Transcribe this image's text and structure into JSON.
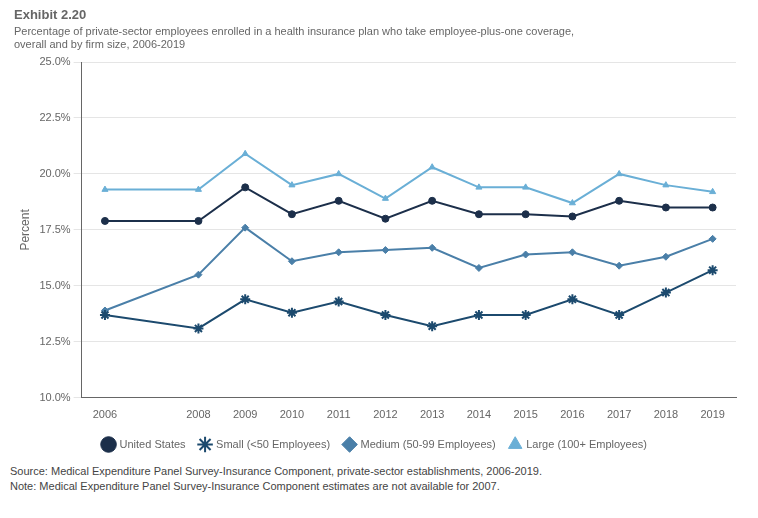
{
  "chart_data": {
    "type": "line",
    "title": "Exhibit 2.20",
    "subtitle": "Percentage of private-sector employees enrolled in a health insurance plan who take employee-plus-one coverage,\noverall and by firm size, 2006-2019",
    "y_label": "Percent",
    "x": [
      2006,
      2008,
      2009,
      2010,
      2011,
      2012,
      2013,
      2014,
      2015,
      2016,
      2017,
      2018,
      2019
    ],
    "series": [
      {
        "name": "United States",
        "color": "#1c2f4a",
        "marker": "circle",
        "values": [
          17.9,
          17.9,
          19.4,
          18.2,
          18.8,
          18.0,
          18.8,
          18.2,
          18.2,
          18.1,
          18.8,
          18.5,
          18.5
        ]
      },
      {
        "name": "Small (<50 Employees)",
        "color": "#1c4a6e",
        "marker": "star",
        "values": [
          13.7,
          13.1,
          14.4,
          13.8,
          14.3,
          13.7,
          13.2,
          13.7,
          13.7,
          14.4,
          13.7,
          14.7,
          15.7
        ]
      },
      {
        "name": "Medium (50-99 Employees)",
        "color": "#4a7fa8",
        "marker": "diamond",
        "values": [
          13.9,
          15.5,
          17.6,
          16.1,
          16.5,
          16.6,
          16.7,
          15.8,
          16.4,
          16.5,
          15.9,
          16.3,
          17.1
        ]
      },
      {
        "name": "Large (100+ Employees)",
        "color": "#6aafd6",
        "marker": "triangle",
        "values": [
          19.3,
          19.3,
          20.9,
          19.5,
          20.0,
          18.9,
          20.3,
          19.4,
          19.4,
          18.7,
          20.0,
          19.5,
          19.2
        ]
      }
    ],
    "xlim": [
      2005.5,
      2019.5
    ],
    "xticks": [
      2006,
      2008,
      2009,
      2010,
      2011,
      2012,
      2013,
      2014,
      2015,
      2016,
      2017,
      2018,
      2019
    ],
    "ylim": [
      10.0,
      25.0
    ],
    "yticks": [
      {
        "value": 10.0,
        "label": "10.0%"
      },
      {
        "value": 12.5,
        "label": "12.5%"
      },
      {
        "value": 15.0,
        "label": "15.0%"
      },
      {
        "value": 17.5,
        "label": "17.5%"
      },
      {
        "value": 20.0,
        "label": "20.0%"
      },
      {
        "value": 22.5,
        "label": "22.5%"
      },
      {
        "value": 25.0,
        "label": "25.0%"
      }
    ],
    "grid": "y",
    "legend": "bottom",
    "annotations": [
      "Source: Medical Expenditure Panel Survey-Insurance Component, private-sector establishments, 2006-2019.",
      "Note: Medical Expenditure Panel Survey-Insurance Component estimates are not available for 2007."
    ]
  }
}
